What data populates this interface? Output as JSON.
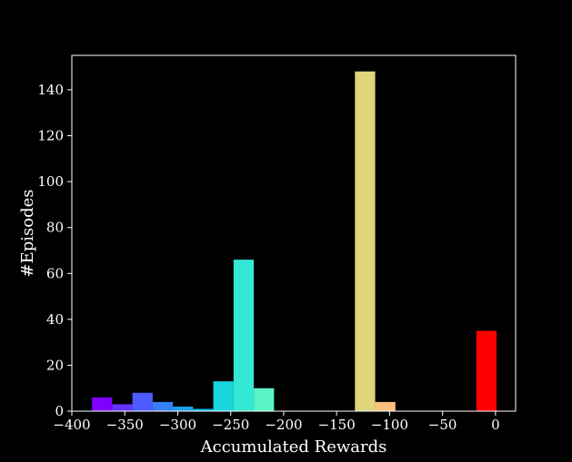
{
  "chart_data": {
    "type": "bar",
    "title": "",
    "xlabel": "Accumulated Rewards",
    "ylabel": "#Episodes",
    "xlim": [
      -400,
      19
    ],
    "ylim": [
      0,
      155
    ],
    "grid": false,
    "background": "#000000",
    "axis_color": "#ffffff",
    "x_ticks": [
      -400,
      -350,
      -300,
      -250,
      -200,
      -150,
      -100,
      -50,
      0
    ],
    "x_tick_labels": [
      "−400",
      "−350",
      "−300",
      "−250",
      "−200",
      "−150",
      "−100",
      "−50",
      "0"
    ],
    "y_ticks": [
      0,
      20,
      40,
      60,
      80,
      100,
      120,
      140
    ],
    "y_tick_labels": [
      "0",
      "20",
      "40",
      "60",
      "80",
      "100",
      "120",
      "140"
    ],
    "bin_width": 19.1,
    "bins": [
      {
        "left": -381.0,
        "value": 6,
        "color": "#7f00ff"
      },
      {
        "left": -361.9,
        "value": 3,
        "color": "#6633ff"
      },
      {
        "left": -342.8,
        "value": 8,
        "color": "#4d5bff"
      },
      {
        "left": -323.7,
        "value": 4,
        "color": "#3480f8"
      },
      {
        "left": -304.6,
        "value": 2,
        "color": "#1aa0ee"
      },
      {
        "left": -285.5,
        "value": 1,
        "color": "#00bde6"
      },
      {
        "left": -266.4,
        "value": 13,
        "color": "#1ad6dd"
      },
      {
        "left": -247.3,
        "value": 66,
        "color": "#33e8d4"
      },
      {
        "left": -228.2,
        "value": 10,
        "color": "#5af5c7"
      },
      {
        "left": -209.1,
        "value": 0,
        "color": "#80feb3"
      },
      {
        "left": -190.0,
        "value": 0,
        "color": "#9afa9f"
      },
      {
        "left": -170.9,
        "value": 0,
        "color": "#b3f18a"
      },
      {
        "left": -151.8,
        "value": 0,
        "color": "#cce476"
      },
      {
        "left": -132.7,
        "value": 148,
        "color": "#e0d57a"
      },
      {
        "left": -113.6,
        "value": 4,
        "color": "#ffc080"
      },
      {
        "left": -94.5,
        "value": 0,
        "color": "#ffa060"
      },
      {
        "left": -75.4,
        "value": 0,
        "color": "#ff7f40"
      },
      {
        "left": -56.3,
        "value": 0,
        "color": "#ff5a2d"
      },
      {
        "left": -37.2,
        "value": 0,
        "color": "#ff3018"
      },
      {
        "left": -18.1,
        "value": 35,
        "color": "#ff0000"
      }
    ]
  }
}
